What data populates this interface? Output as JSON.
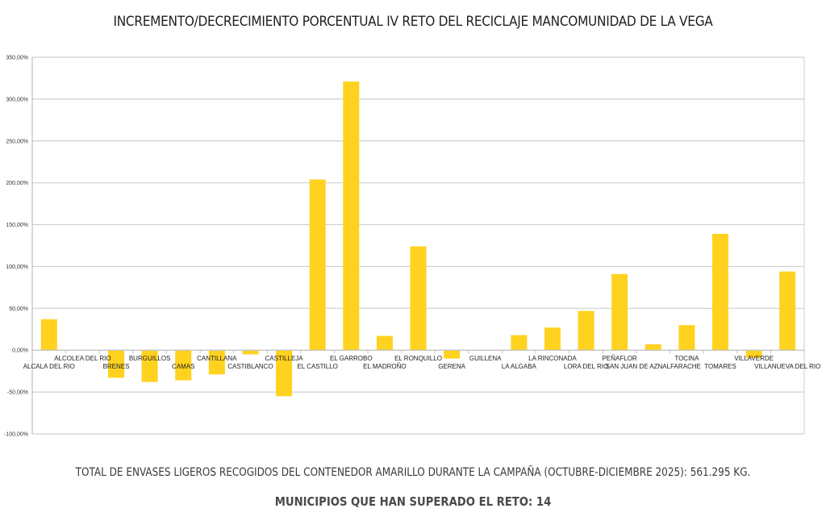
{
  "chart_data": {
    "type": "bar",
    "title": "INCREMENTO/DECRECIMIENTO PORCENTUAL IV RETO DEL RECICLAJE MANCOMUNIDAD DE LA VEGA",
    "xlabel": "",
    "ylabel": "",
    "ylim": [
      -100,
      350
    ],
    "yticks": [
      -100,
      -50,
      0,
      50,
      100,
      150,
      200,
      250,
      300,
      350
    ],
    "ytick_labels": [
      "-100,00%",
      "-50,00%",
      "0,00%",
      "50,00%",
      "100,00%",
      "150,00%",
      "200,00%",
      "250,00%",
      "300,00%",
      "350,00%"
    ],
    "grid": true,
    "legend": "none",
    "bar_color": "#FFD21F",
    "categories": [
      "ALCALA DEL RIO",
      "ALCOLEA DEL RIO",
      "BRENES",
      "BURGUILLOS",
      "CAMAS",
      "CANTILLANA",
      "CASTIBLANCO",
      "CASTILLEJA",
      "EL CASTILLO",
      "EL GARROBO",
      "EL MADROÑO",
      "EL RONQUILLO",
      "GERENA",
      "GUILLENA",
      "LA ALGABA",
      "LA RINCONADA",
      "LORA DEL RIO",
      "PEÑAFLOR",
      "SAN JUAN DE AZNALFARACHE",
      "TOCINA",
      "TOMARES",
      "VILLAVERDE",
      "VILLANUEVA DEL RIO"
    ],
    "values": [
      37,
      0.5,
      -33,
      -38,
      -36,
      -29,
      -5,
      -55,
      204,
      321,
      17,
      124,
      -10,
      0,
      18,
      27,
      47,
      91,
      7,
      30,
      139,
      -9,
      94
    ]
  },
  "footer": {
    "total_text": "TOTAL DE ENVASES LIGEROS RECOGIDOS DEL CONTENEDOR AMARILLO DURANTE LA CAMPAÑA (OCTUBRE-DICIEMBRE 2025): 561.295 KG.",
    "reto_text": "MUNICIPIOS QUE HAN SUPERADO EL RETO: 14"
  }
}
